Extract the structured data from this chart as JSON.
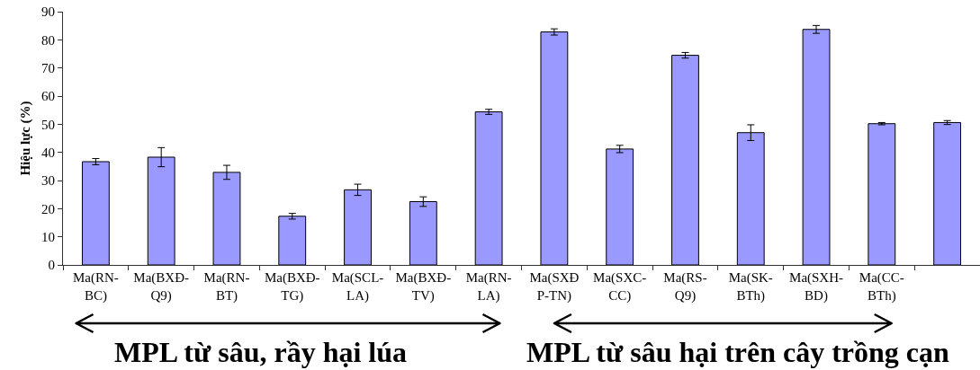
{
  "chart_data": {
    "type": "bar",
    "ylabel": "Hiệu lực (%)",
    "categories": [
      "Ma(RN-BC)",
      "Ma(BXĐ-Q9)",
      "Ma(RN-BT)",
      "Ma(BXĐ-TG)",
      "Ma(SCL-LA)",
      "Ma(BXĐ-TV)",
      "Ma(RN-LA)",
      "Ma(SXĐP-TN)",
      "Ma(SXC-CC)",
      "Ma(RS-Q9)",
      "Ma(SK-BTh)",
      "Ma(SXH-BD)",
      "Ma(CC-BTh)",
      null
    ],
    "values": [
      36.7,
      38.3,
      32.9,
      17.3,
      26.7,
      22.5,
      54.4,
      82.8,
      41.2,
      74.5,
      47.0,
      83.7,
      50.2,
      50.6
    ],
    "errors": [
      1.1,
      3.4,
      2.5,
      1.0,
      2.0,
      1.7,
      0.9,
      1.1,
      1.3,
      1.0,
      2.8,
      1.4,
      0.4,
      0.7
    ],
    "color": "#9999ff",
    "ylim": [
      0,
      90
    ],
    "yticks": [
      0,
      10,
      20,
      30,
      40,
      50,
      60,
      70,
      80,
      90
    ],
    "annotations": [
      "MPL từ sâu, rầy hại lúa",
      "MPL từ sâu hại trên cây trồng cạn"
    ]
  }
}
